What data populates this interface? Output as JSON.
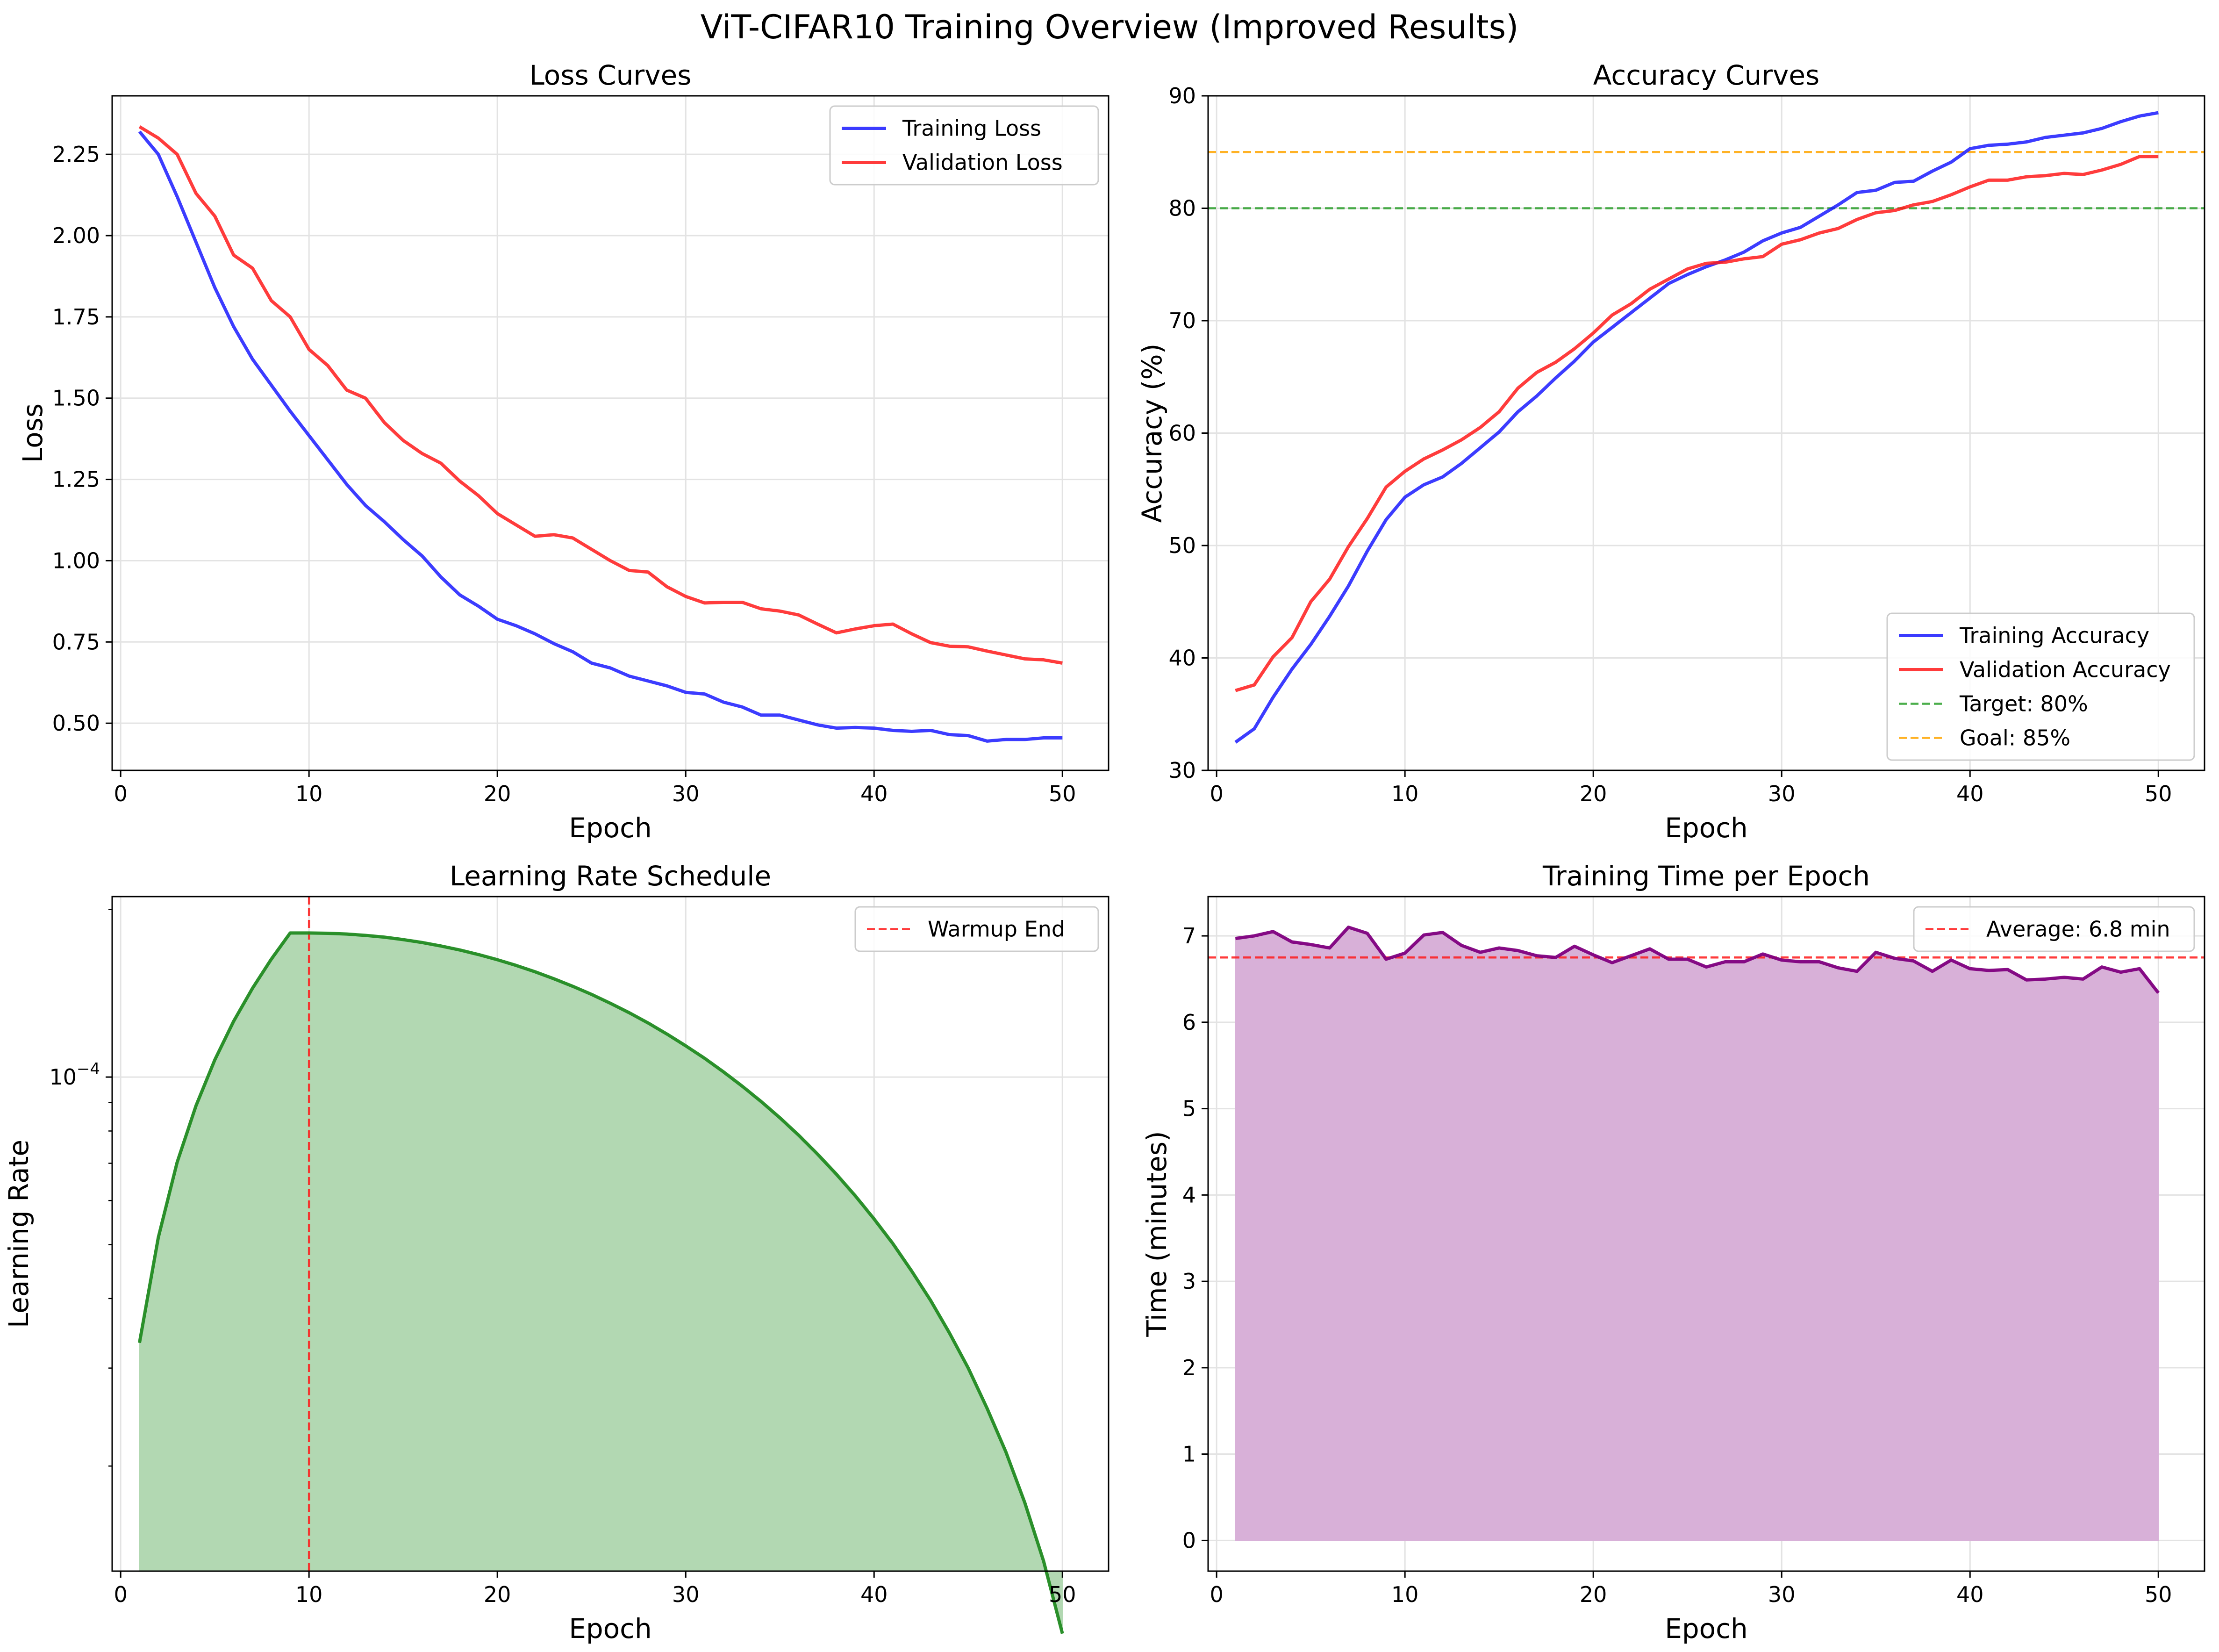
{
  "title": "ViT-CIFAR10 Training Overview (Improved Results)",
  "chart_data": [
    {
      "type": "line",
      "title": "Loss Curves",
      "xlabel": "Epoch",
      "ylabel": "Loss",
      "xlim": [
        -0.45,
        52.45
      ],
      "ylim": [
        0.355,
        2.43
      ],
      "xticks": [
        0,
        10,
        20,
        30,
        40,
        50
      ],
      "yticks": [
        0.5,
        0.75,
        1.0,
        1.25,
        1.5,
        1.75,
        2.0,
        2.25
      ],
      "ytick_labels": [
        "0.50",
        "0.75",
        "1.00",
        "1.25",
        "1.50",
        "1.75",
        "2.00",
        "2.25"
      ],
      "grid": true,
      "legend_loc": "upper right",
      "x": [
        1,
        2,
        3,
        4,
        5,
        6,
        7,
        8,
        9,
        10,
        11,
        12,
        13,
        14,
        15,
        16,
        17,
        18,
        19,
        20,
        21,
        22,
        23,
        24,
        25,
        26,
        27,
        28,
        29,
        30,
        31,
        32,
        33,
        34,
        35,
        36,
        37,
        38,
        39,
        40,
        41,
        42,
        43,
        44,
        45,
        46,
        47,
        48,
        49,
        50
      ],
      "series": [
        {
          "name": "Training Loss",
          "color": "#1a1aff",
          "values": [
            2.32,
            2.25,
            2.12,
            1.98,
            1.84,
            1.72,
            1.62,
            1.54,
            1.46,
            1.385,
            1.31,
            1.235,
            1.17,
            1.12,
            1.065,
            1.015,
            0.95,
            0.895,
            0.86,
            0.82,
            0.8,
            0.775,
            0.745,
            0.72,
            0.685,
            0.67,
            0.645,
            0.63,
            0.615,
            0.595,
            0.59,
            0.565,
            0.55,
            0.525,
            0.525,
            0.51,
            0.495,
            0.485,
            0.487,
            0.485,
            0.478,
            0.475,
            0.478,
            0.465,
            0.462,
            0.445,
            0.45,
            0.45,
            0.455,
            0.455
          ]
        },
        {
          "name": "Validation Loss",
          "color": "#ff1a1a",
          "values": [
            2.335,
            2.3,
            2.25,
            2.13,
            2.06,
            1.94,
            1.9,
            1.8,
            1.75,
            1.65,
            1.6,
            1.525,
            1.5,
            1.425,
            1.37,
            1.33,
            1.3,
            1.245,
            1.2,
            1.145,
            1.11,
            1.075,
            1.08,
            1.07,
            1.035,
            1.0,
            0.97,
            0.965,
            0.92,
            0.89,
            0.87,
            0.872,
            0.872,
            0.852,
            0.845,
            0.833,
            0.805,
            0.778,
            0.79,
            0.8,
            0.805,
            0.775,
            0.748,
            0.737,
            0.735,
            0.722,
            0.71,
            0.698,
            0.695,
            0.685
          ]
        }
      ]
    },
    {
      "type": "line",
      "title": "Accuracy Curves",
      "xlabel": "Epoch",
      "ylabel": "Accuracy (%)",
      "xlim": [
        -0.45,
        52.45
      ],
      "ylim": [
        30,
        90
      ],
      "xticks": [
        0,
        10,
        20,
        30,
        40,
        50
      ],
      "yticks": [
        30,
        40,
        50,
        60,
        70,
        80,
        90
      ],
      "ytick_labels": [
        "30",
        "40",
        "50",
        "60",
        "70",
        "80",
        "90"
      ],
      "grid": true,
      "legend_loc": "lower right",
      "x": [
        1,
        2,
        3,
        4,
        5,
        6,
        7,
        8,
        9,
        10,
        11,
        12,
        13,
        14,
        15,
        16,
        17,
        18,
        19,
        20,
        21,
        22,
        23,
        24,
        25,
        26,
        27,
        28,
        29,
        30,
        31,
        32,
        33,
        34,
        35,
        36,
        37,
        38,
        39,
        40,
        41,
        42,
        43,
        44,
        45,
        46,
        47,
        48,
        49,
        50
      ],
      "series": [
        {
          "name": "Training Accuracy",
          "color": "#1a1aff",
          "values": [
            32.5,
            33.7,
            36.5,
            39.0,
            41.2,
            43.7,
            46.4,
            49.5,
            52.3,
            54.3,
            55.4,
            56.1,
            57.3,
            58.7,
            60.1,
            61.9,
            63.3,
            64.9,
            66.4,
            68.1,
            69.4,
            70.7,
            72.0,
            73.3,
            74.1,
            74.8,
            75.4,
            76.1,
            77.1,
            77.8,
            78.3,
            79.3,
            80.3,
            81.4,
            81.6,
            82.3,
            82.4,
            83.3,
            84.1,
            85.3,
            85.6,
            85.7,
            85.9,
            86.3,
            86.5,
            86.7,
            87.1,
            87.7,
            88.2,
            88.5
          ]
        },
        {
          "name": "Validation Accuracy",
          "color": "#ff1a1a",
          "values": [
            37.1,
            37.6,
            40.1,
            41.8,
            45.0,
            47.0,
            49.9,
            52.4,
            55.2,
            56.6,
            57.7,
            58.5,
            59.4,
            60.5,
            61.9,
            64.0,
            65.4,
            66.3,
            67.5,
            68.9,
            70.5,
            71.5,
            72.8,
            73.7,
            74.6,
            75.1,
            75.2,
            75.5,
            75.7,
            76.8,
            77.2,
            77.8,
            78.2,
            79.0,
            79.6,
            79.8,
            80.3,
            80.6,
            81.2,
            81.9,
            82.5,
            82.5,
            82.8,
            82.9,
            83.1,
            83.0,
            83.4,
            83.9,
            84.6,
            84.6
          ]
        }
      ],
      "reference_lines": [
        {
          "name": "Target: 80%",
          "value": 80,
          "color": "#2ca02c"
        },
        {
          "name": "Goal: 85%",
          "value": 85,
          "color": "#ffa500"
        }
      ]
    },
    {
      "type": "area",
      "title": "Learning Rate Schedule",
      "xlabel": "Epoch",
      "ylabel": "Learning Rate",
      "yscale": "log",
      "xlim": [
        -0.45,
        52.45
      ],
      "ylim": [
        1.295e-05,
        0.000211
      ],
      "xticks": [
        0,
        10,
        20,
        30,
        40,
        50
      ],
      "ytick_major": 0.0001,
      "ytick_major_label_base": "10",
      "ytick_major_label_exp": "−4",
      "yticks_minor": [
        2e-05,
        3e-05,
        4e-05,
        5e-05,
        6e-05,
        7e-05,
        8e-05,
        9e-05,
        0.0002
      ],
      "grid": true,
      "legend_loc": "upper right",
      "color": "#228b22",
      "fill_color": "#b2d8b2",
      "x": [
        1,
        2,
        3,
        4,
        5,
        6,
        7,
        8,
        9,
        10,
        11,
        12,
        13,
        14,
        15,
        16,
        17,
        18,
        19,
        20,
        21,
        22,
        23,
        24,
        25,
        26,
        27,
        28,
        29,
        30,
        31,
        32,
        33,
        34,
        35,
        36,
        37,
        38,
        39,
        40,
        41,
        42,
        43,
        44,
        45,
        46,
        47,
        48,
        49,
        50
      ],
      "values": [
        3.33e-05,
        5.15e-05,
        7.03e-05,
        8.88e-05,
        0.0001074,
        0.000126,
        0.0001444,
        0.0001629,
        0.0001815,
        0.0001815,
        0.0001813,
        0.0001807,
        0.0001797,
        0.0001784,
        0.0001766,
        0.0001745,
        0.000172,
        0.0001692,
        0.000166,
        0.0001625,
        0.0001587,
        0.0001546,
        0.0001502,
        0.0001456,
        0.0001408,
        0.0001357,
        0.0001305,
        0.0001251,
        0.0001195,
        0.0001138,
        0.0001081,
        0.0001022,
        9.63e-05,
        9.04e-05,
        8.45e-05,
        7.86e-05,
        7.27e-05,
        6.69e-05,
        6.12e-05,
        5.56e-05,
        5.02e-05,
        4.48e-05,
        3.97e-05,
        3.47e-05,
        3e-05,
        2.54e-05,
        2.12e-05,
        1.72e-05,
        1.35e-05,
        1e-05
      ],
      "reference_lines": [
        {
          "name": "Warmup End",
          "x": 10,
          "color": "#ff1a1a"
        }
      ]
    },
    {
      "type": "area",
      "title": "Training Time per Epoch",
      "xlabel": "Epoch",
      "ylabel": "Time (minutes)",
      "xlim": [
        -0.45,
        52.45
      ],
      "ylim": [
        -0.355,
        7.455
      ],
      "xticks": [
        0,
        10,
        20,
        30,
        40,
        50
      ],
      "yticks": [
        0,
        1,
        2,
        3,
        4,
        5,
        6,
        7
      ],
      "ytick_labels": [
        "0",
        "1",
        "2",
        "3",
        "4",
        "5",
        "6",
        "7"
      ],
      "grid": true,
      "legend_loc": "upper right",
      "color": "#800080",
      "fill_color": "#d8b0d8",
      "x": [
        1,
        2,
        3,
        4,
        5,
        6,
        7,
        8,
        9,
        10,
        11,
        12,
        13,
        14,
        15,
        16,
        17,
        18,
        19,
        20,
        21,
        22,
        23,
        24,
        25,
        26,
        27,
        28,
        29,
        30,
        31,
        32,
        33,
        34,
        35,
        36,
        37,
        38,
        39,
        40,
        41,
        42,
        43,
        44,
        45,
        46,
        47,
        48,
        49,
        50
      ],
      "values": [
        6.97,
        7.0,
        7.05,
        6.93,
        6.9,
        6.86,
        7.1,
        7.03,
        6.73,
        6.8,
        7.01,
        7.04,
        6.89,
        6.81,
        6.86,
        6.83,
        6.77,
        6.75,
        6.88,
        6.78,
        6.69,
        6.77,
        6.85,
        6.73,
        6.73,
        6.64,
        6.7,
        6.7,
        6.79,
        6.72,
        6.7,
        6.7,
        6.63,
        6.59,
        6.81,
        6.74,
        6.71,
        6.59,
        6.72,
        6.62,
        6.6,
        6.61,
        6.49,
        6.5,
        6.52,
        6.5,
        6.64,
        6.58,
        6.62,
        6.34
      ],
      "reference_lines": [
        {
          "name": "Average: 6.8 min",
          "value": 6.75,
          "color": "#ff1a1a"
        }
      ]
    }
  ]
}
